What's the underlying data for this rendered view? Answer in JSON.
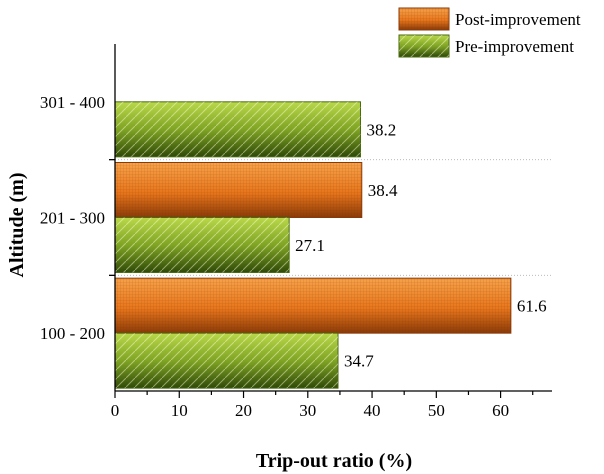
{
  "chart_data": {
    "type": "bar",
    "orientation": "horizontal",
    "categories": [
      "100 - 200",
      "201 - 300",
      "301 - 400"
    ],
    "series": [
      {
        "name": "Post-improvement",
        "values": [
          61.6,
          38.4,
          null
        ],
        "labels": [
          "61.6",
          "38.4",
          ""
        ],
        "color": "#e8761c"
      },
      {
        "name": "Pre-improvement",
        "values": [
          34.7,
          27.1,
          38.2
        ],
        "labels": [
          "34.7",
          "27.1",
          "38.2"
        ],
        "color": "#8fb62a"
      }
    ],
    "xlabel": "Trip-out ratio (%)",
    "ylabel": "Altitude (m)",
    "xlim": [
      0,
      68
    ],
    "xticks": [
      0,
      10,
      20,
      30,
      40,
      50,
      60
    ],
    "grid": "dotted category separators",
    "legend_position": "top-right"
  }
}
